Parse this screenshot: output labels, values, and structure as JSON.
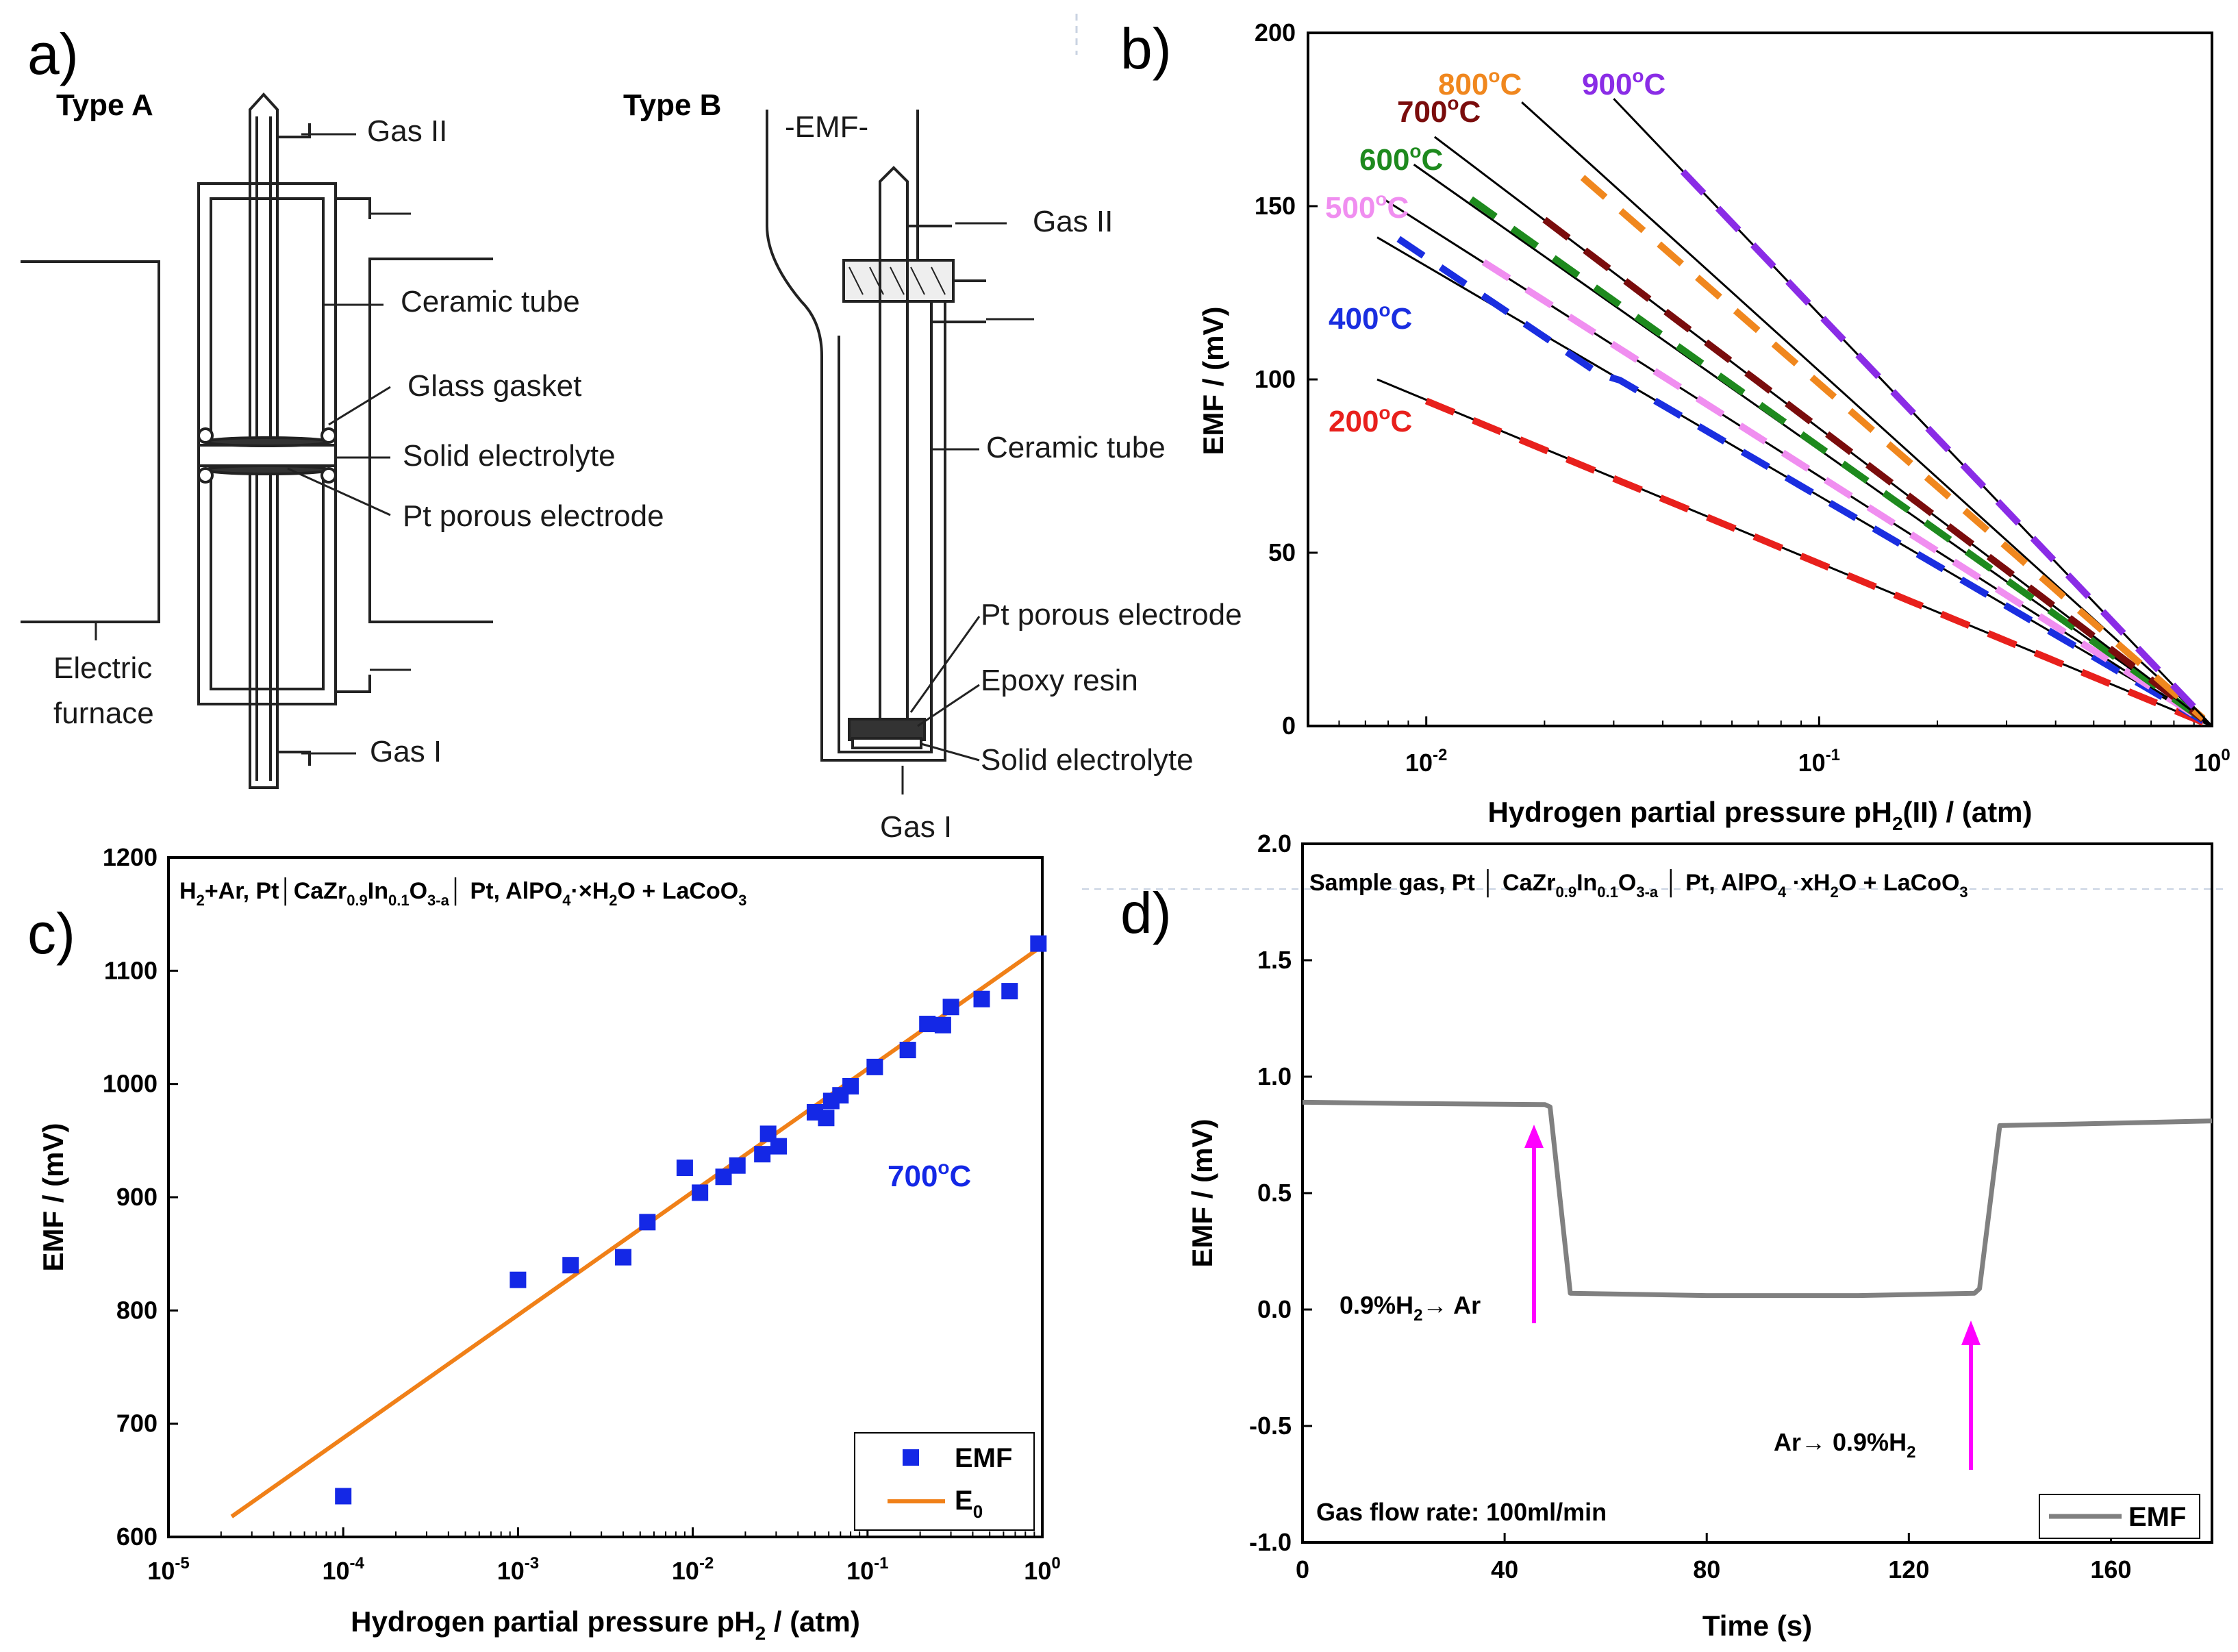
{
  "panel_labels": {
    "a": "a)",
    "b": "b)",
    "c": "c)",
    "d": "d)"
  },
  "diagram": {
    "type_a": {
      "title": "Type A",
      "labels": [
        "Gas II",
        "Ceramic tube",
        "Glass gasket",
        "Solid electrolyte",
        "Pt porous electrode",
        "Electric",
        "furnace",
        "Gas I"
      ]
    },
    "type_b": {
      "title": "Type B",
      "labels": [
        "-EMF-",
        "Gas II",
        "Ceramic tube",
        "Pt porous electrode",
        "Epoxy resin",
        "Solid electrolyte",
        "Gas I"
      ]
    }
  },
  "colors": {
    "200": "#e8201c",
    "400": "#1a2ee0",
    "500": "#f08ef0",
    "600": "#1e8a1e",
    "700": "#7a0c0c",
    "800": "#f0871e",
    "900": "#8a2ce6",
    "scatter": "#1428e6",
    "fit": "#f08018",
    "emf_line": "#808080",
    "arrow": "#ff00ff"
  },
  "chart_data": [
    {
      "panel": "b",
      "type": "line",
      "title": "",
      "xlabel": "Hydrogen partial pressure pH2(II) / (atm)",
      "ylabel": "EMF / (mV)",
      "xscale": "log",
      "xlim": [
        0.005,
        1
      ],
      "ylim": [
        0,
        200
      ],
      "x_ticks": [
        "10^-2",
        "10^-1",
        "10^0"
      ],
      "y_ticks": [
        0,
        50,
        100,
        150,
        200
      ],
      "series": [
        {
          "name": "200°C",
          "temperature": 200,
          "fit_x_start": 0.0075,
          "fit_y_start": 100,
          "slope_mV_per_decade": 46.9,
          "dashed_x_range": [
            0.01,
            0.95
          ]
        },
        {
          "name": "400°C",
          "temperature": 400,
          "fit_x_start": 0.0075,
          "fit_y_start": 141,
          "slope_mV_per_decade": 66.2,
          "dashed_x_range": [
            0.0085,
            0.95
          ]
        },
        {
          "name": "500°C",
          "temperature": 500,
          "fit_x_start": 0.0078,
          "fit_y_start": 152,
          "slope_mV_per_decade": 72.2,
          "dashed_x_range": [
            0.014,
            0.95
          ]
        },
        {
          "name": "600°C",
          "temperature": 600,
          "fit_x_start": 0.0093,
          "fit_y_start": 162,
          "slope_mV_per_decade": 80.6,
          "dashed_x_range": [
            0.013,
            0.95
          ]
        },
        {
          "name": "700°C",
          "temperature": 700,
          "fit_x_start": 0.0105,
          "fit_y_start": 170,
          "slope_mV_per_decade": 86.0,
          "dashed_x_range": [
            0.02,
            0.95
          ]
        },
        {
          "name": "800°C",
          "temperature": 800,
          "fit_x_start": 0.0175,
          "fit_y_start": 180,
          "slope_mV_per_decade": 98.8,
          "dashed_x_range": [
            0.025,
            0.95
          ]
        },
        {
          "name": "900°C",
          "temperature": 900,
          "fit_x_start": 0.03,
          "fit_y_start": 181,
          "slope_mV_per_decade": 118.8,
          "dashed_x_range": [
            0.045,
            0.95
          ]
        }
      ],
      "labels": [
        "200°C",
        "400°C",
        "500°C",
        "600°C",
        "700°C",
        "800°C",
        "900°C"
      ]
    },
    {
      "panel": "c",
      "type": "scatter",
      "title": "H2+Ar, Pt|CaZr0.9In0.1O3-a | Pt, AlPO4·xH2O + LaCoO3",
      "xlabel": "Hydrogen partial pressure pH2 / (atm)",
      "ylabel": "EMF / (mV)",
      "xscale": "log",
      "xlim": [
        1e-05,
        1
      ],
      "ylim": [
        600,
        1200
      ],
      "x_ticks": [
        "10^-5",
        "10^-4",
        "10^-3",
        "10^-2",
        "10^-1",
        "10^0"
      ],
      "y_ticks": [
        600,
        700,
        800,
        900,
        1000,
        1100,
        1200
      ],
      "annotation": "700°C",
      "series": [
        {
          "name": "EMF",
          "marker": "square",
          "points": [
            [
              0.0001,
              636
            ],
            [
              0.001,
              827
            ],
            [
              0.002,
              840
            ],
            [
              0.004,
              847
            ],
            [
              0.0055,
              878
            ],
            [
              0.009,
              926
            ],
            [
              0.011,
              904
            ],
            [
              0.015,
              918
            ],
            [
              0.018,
              928
            ],
            [
              0.025,
              938
            ],
            [
              0.027,
              956
            ],
            [
              0.031,
              945
            ],
            [
              0.05,
              975
            ],
            [
              0.058,
              970
            ],
            [
              0.062,
              985
            ],
            [
              0.07,
              990
            ],
            [
              0.08,
              998
            ],
            [
              0.11,
              1015
            ],
            [
              0.17,
              1030
            ],
            [
              0.22,
              1053
            ],
            [
              0.27,
              1052
            ],
            [
              0.3,
              1068
            ],
            [
              0.45,
              1075
            ],
            [
              0.65,
              1082
            ],
            [
              0.95,
              1124
            ]
          ]
        },
        {
          "name": "E0",
          "line": [
            [
              2.3e-05,
              618
            ],
            [
              1,
              1122
            ]
          ]
        }
      ],
      "legend": [
        "EMF",
        "E0"
      ]
    },
    {
      "panel": "d",
      "type": "line",
      "title": "Sample gas, Pt | CaZr0.9In0.1O3-a | Pt, AlPO4·xH2O + LaCoO3",
      "xlabel": "Time (s)",
      "ylabel": "EMF / (mV)",
      "xlim": [
        0,
        180
      ],
      "ylim": [
        -1.0,
        2.0
      ],
      "x_ticks": [
        0,
        40,
        80,
        120,
        160
      ],
      "y_ticks": [
        -1.0,
        -0.5,
        0.0,
        0.5,
        1.0,
        1.5,
        2.0
      ],
      "series": [
        {
          "name": "EMF",
          "points": [
            [
              0,
              0.89
            ],
            [
              20,
              0.885
            ],
            [
              48,
              0.88
            ],
            [
              49,
              0.87
            ],
            [
              53,
              0.07
            ],
            [
              80,
              0.06
            ],
            [
              110,
              0.06
            ],
            [
              133,
              0.07
            ],
            [
              134,
              0.09
            ],
            [
              138,
              0.79
            ],
            [
              160,
              0.8
            ],
            [
              180,
              0.81
            ]
          ]
        }
      ],
      "annotations": [
        "0.9%H2→ Ar",
        "Ar→ 0.9%H2",
        "Gas flow rate: 100ml/min"
      ],
      "legend": [
        "EMF"
      ]
    }
  ]
}
